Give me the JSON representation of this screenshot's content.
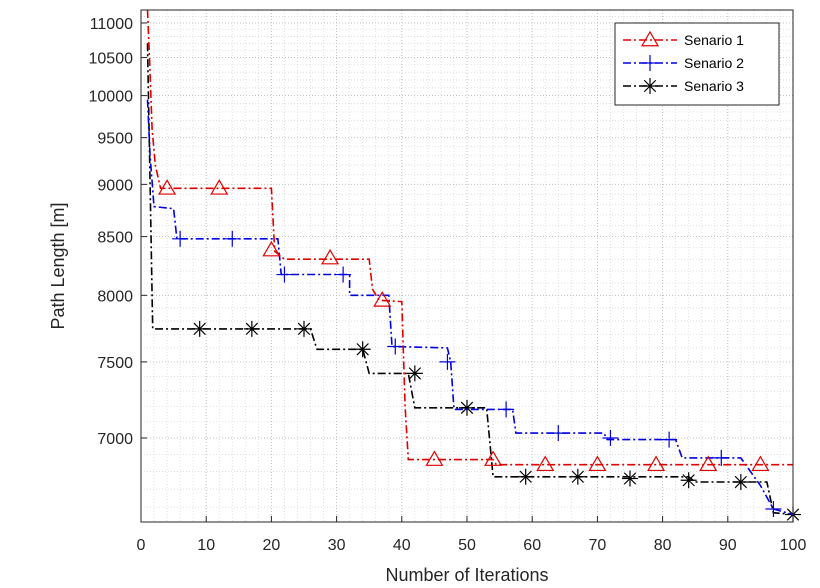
{
  "chart_data": {
    "type": "line",
    "xlabel": "Number of Iterations",
    "ylabel": "Path Length [m]",
    "xlim": [
      0,
      100
    ],
    "ylim": [
      6520,
      11200
    ],
    "y_scale": "reciprocal",
    "grid": "on (major + minor dotted)",
    "legend_position": "top-right",
    "x_ticks": [
      0,
      10,
      20,
      30,
      40,
      50,
      60,
      70,
      80,
      90,
      100
    ],
    "y_ticks": [
      7000,
      7500,
      8000,
      8500,
      9000,
      9500,
      10000,
      10500,
      11000
    ],
    "series": [
      {
        "name": "Senario 1",
        "color": "#e00000",
        "linestyle": "dash-dot",
        "marker": "triangle",
        "points": [
          [
            1,
            11200
          ],
          [
            1.3,
            10500
          ],
          [
            1.7,
            9600
          ],
          [
            2.2,
            9200
          ],
          [
            3,
            8960
          ],
          [
            20,
            8960
          ],
          [
            20.5,
            8370
          ],
          [
            22,
            8300
          ],
          [
            35,
            8300
          ],
          [
            35.5,
            8050
          ],
          [
            36.5,
            7960
          ],
          [
            40,
            7950
          ],
          [
            40.5,
            7200
          ],
          [
            41,
            6870
          ],
          [
            54,
            6870
          ],
          [
            54.5,
            6840
          ],
          [
            100,
            6840
          ]
        ],
        "marker_points": [
          [
            4,
            8960
          ],
          [
            12,
            8960
          ],
          [
            20,
            8380
          ],
          [
            29,
            8310
          ],
          [
            37,
            7960
          ],
          [
            45,
            6870
          ],
          [
            54,
            6870
          ],
          [
            62,
            6840
          ],
          [
            70,
            6840
          ],
          [
            79,
            6840
          ],
          [
            87,
            6840
          ],
          [
            95,
            6840
          ]
        ]
      },
      {
        "name": "Senario 2",
        "color": "#0000e0",
        "linestyle": "dash-dot",
        "marker": "plus",
        "points": [
          [
            1,
            9950
          ],
          [
            1.4,
            9300
          ],
          [
            2,
            8780
          ],
          [
            5,
            8760
          ],
          [
            5.5,
            8480
          ],
          [
            21,
            8480
          ],
          [
            21.5,
            8170
          ],
          [
            32,
            8170
          ],
          [
            32,
            8000
          ],
          [
            38,
            8000
          ],
          [
            38.5,
            7610
          ],
          [
            47,
            7600
          ],
          [
            47.5,
            7500
          ],
          [
            48,
            7180
          ],
          [
            57,
            7180
          ],
          [
            57.5,
            7030
          ],
          [
            71,
            7030
          ],
          [
            71.5,
            6990
          ],
          [
            82,
            6990
          ],
          [
            83,
            6880
          ],
          [
            92,
            6880
          ],
          [
            95,
            6720
          ],
          [
            97,
            6590
          ],
          [
            100,
            6560
          ]
        ],
        "marker_points": [
          [
            6,
            8480
          ],
          [
            14,
            8480
          ],
          [
            22,
            8170
          ],
          [
            31,
            8170
          ],
          [
            39,
            7610
          ],
          [
            47,
            7500
          ],
          [
            56,
            7180
          ],
          [
            64,
            7030
          ],
          [
            72,
            7000
          ],
          [
            81,
            6990
          ],
          [
            89,
            6880
          ],
          [
            97,
            6590
          ]
        ]
      },
      {
        "name": "Senario 3",
        "color": "#000000",
        "linestyle": "dash-dot",
        "marker": "asterisk",
        "points": [
          [
            1,
            10700
          ],
          [
            1.4,
            9000
          ],
          [
            1.8,
            7740
          ],
          [
            26,
            7740
          ],
          [
            27,
            7590
          ],
          [
            34,
            7590
          ],
          [
            35,
            7420
          ],
          [
            41,
            7420
          ],
          [
            42,
            7190
          ],
          [
            53,
            7190
          ],
          [
            54,
            6770
          ],
          [
            84,
            6770
          ],
          [
            85,
            6740
          ],
          [
            96,
            6740
          ],
          [
            97,
            6570
          ],
          [
            100,
            6560
          ]
        ],
        "marker_points": [
          [
            9,
            7740
          ],
          [
            17,
            7740
          ],
          [
            25,
            7740
          ],
          [
            34,
            7590
          ],
          [
            42,
            7420
          ],
          [
            50,
            7190
          ],
          [
            59,
            6770
          ],
          [
            67,
            6770
          ],
          [
            75,
            6760
          ],
          [
            84,
            6750
          ],
          [
            92,
            6740
          ],
          [
            100,
            6560
          ]
        ]
      }
    ]
  }
}
